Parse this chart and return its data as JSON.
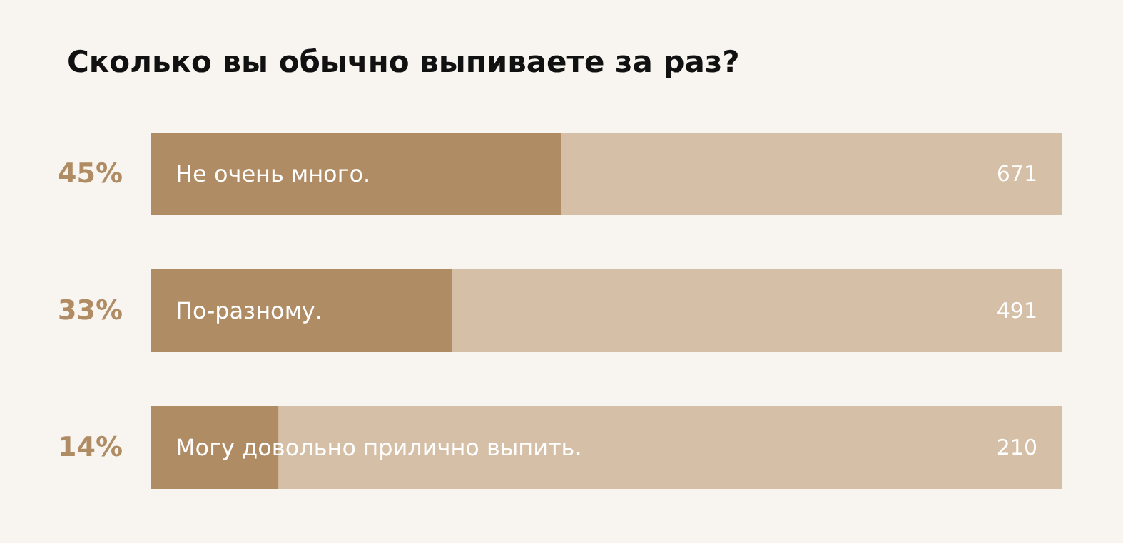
{
  "chart_data": {
    "type": "bar",
    "orientation": "horizontal",
    "stacked": true,
    "title": "Сколько вы обычно выпиваете за раз?",
    "categories": [
      "Не очень много.",
      "По-разному.",
      "Могу довольно прилично выпить."
    ],
    "series": [
      {
        "color": "#b08c64",
        "values": [
          45,
          33,
          14
        ],
        "value_labels": [
          "45%",
          "33%",
          "14%"
        ]
      },
      {
        "color": "#d5bfa6",
        "values": [
          55,
          67,
          86
        ]
      }
    ],
    "annotations": [
      "671",
      "491",
      "210"
    ],
    "xlim": [
      0,
      100
    ],
    "tick_labels": false
  }
}
